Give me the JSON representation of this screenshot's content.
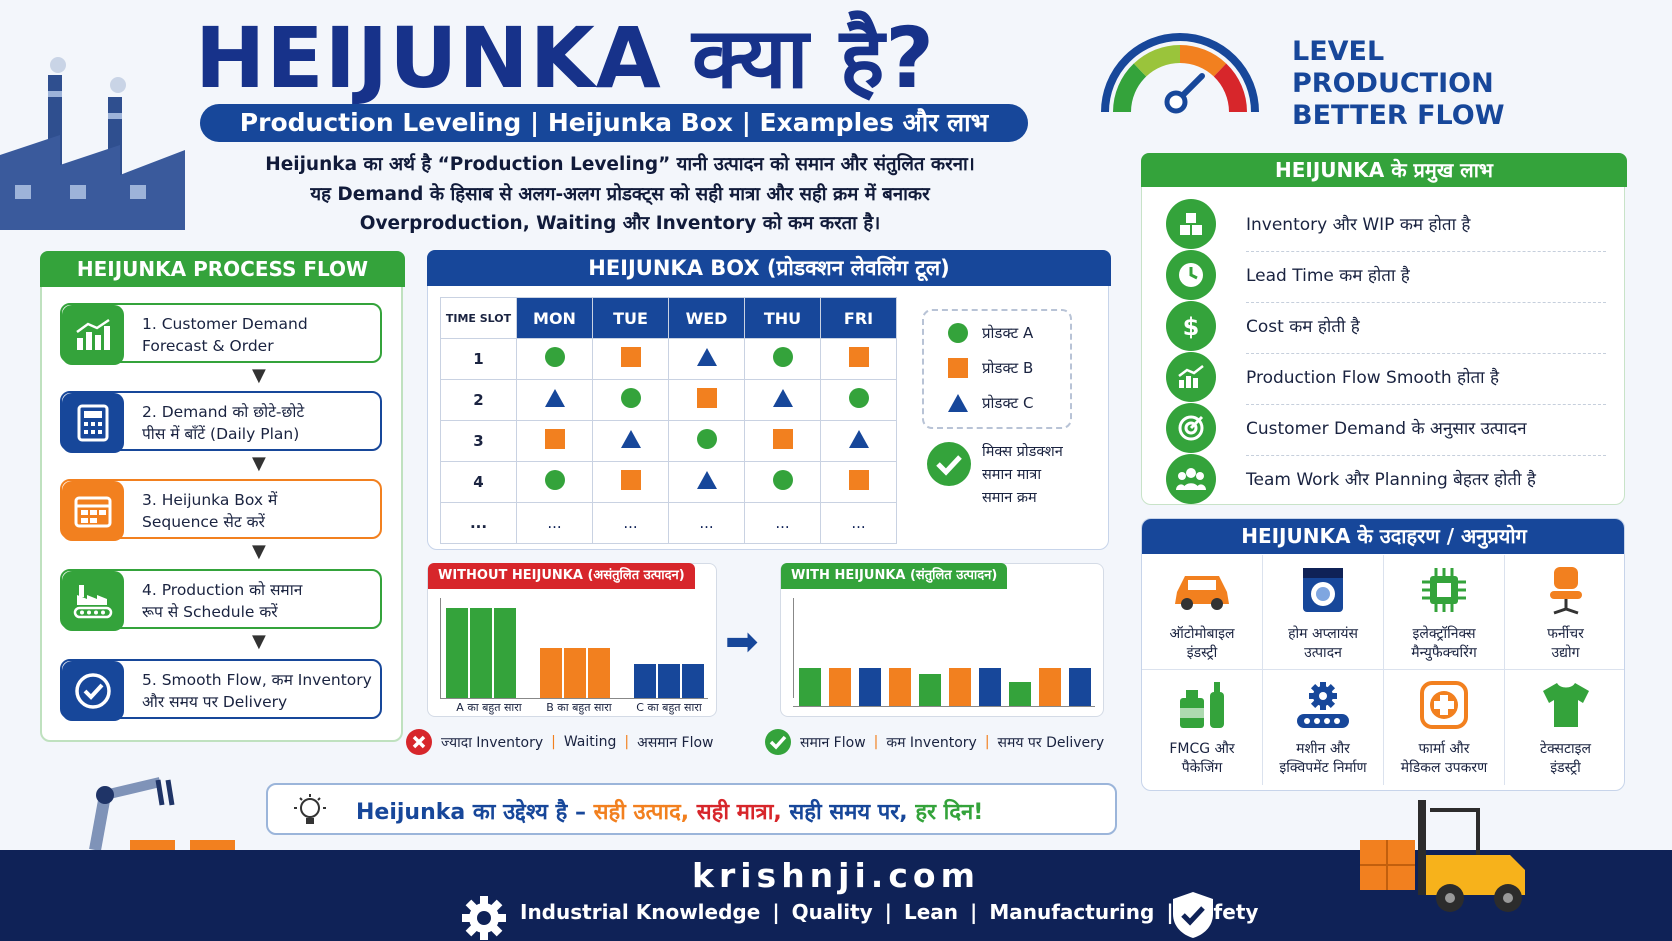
{
  "header": {
    "title": "HEIJUNKA क्या है?",
    "subtitle": "Production Leveling | Heijunka Box | Examples और लाभ",
    "intro": [
      "Heijunka का अर्थ है “Production Leveling” यानी उत्पादन को समान और संतुलित करना।",
      "यह Demand के हिसाब से अलग-अलग प्रोडक्ट्स को सही मात्रा और सही क्रम में बनाकर",
      "Overproduction, Waiting और Inventory को कम करता है।"
    ],
    "level": [
      "LEVEL",
      "PRODUCTION",
      "BETTER FLOW"
    ]
  },
  "process": {
    "title": "HEIJUNKA PROCESS FLOW",
    "steps": [
      {
        "text": "1. Customer Demand\nForecast & Order",
        "icon": "chart-growth-icon",
        "color": "#34a33b"
      },
      {
        "text": "2. Demand को छोटे-छोटे\nपीस में बाँटें (Daily Plan)",
        "icon": "calculator-icon",
        "color": "#17479a"
      },
      {
        "text": "3. Heijunka Box में\nSequence सेट करें",
        "icon": "schedule-board-icon",
        "color": "#f2801f"
      },
      {
        "text": "4. Production को समान\nरूप से Schedule करें",
        "icon": "factory-conveyor-icon",
        "color": "#34a33b"
      },
      {
        "text": "5. Smooth Flow, कम Inventory\nऔर समय पर Delivery",
        "icon": "check-circle-icon",
        "color": "#17479a"
      }
    ]
  },
  "heijunka_box": {
    "title": "HEIJUNKA BOX (प्रोडक्शन लेवलिंग टूल)",
    "slot_label": "TIME SLOT",
    "days": [
      "MON",
      "TUE",
      "WED",
      "THU",
      "FRI"
    ],
    "rows": [
      {
        "slot": "1",
        "cells": [
          "A",
          "B",
          "C",
          "A",
          "B"
        ]
      },
      {
        "slot": "2",
        "cells": [
          "C",
          "A",
          "B",
          "C",
          "A"
        ]
      },
      {
        "slot": "3",
        "cells": [
          "B",
          "C",
          "A",
          "B",
          "C"
        ]
      },
      {
        "slot": "4",
        "cells": [
          "A",
          "B",
          "C",
          "A",
          "B"
        ]
      },
      {
        "slot": "...",
        "cells": [
          "...",
          "...",
          "...",
          "...",
          "..."
        ]
      }
    ],
    "legend": [
      {
        "key": "A",
        "label": "प्रोडक्ट A",
        "shape": "circle",
        "color": "#34a33b"
      },
      {
        "key": "B",
        "label": "प्रोडक्ट B",
        "shape": "square",
        "color": "#f2801f"
      },
      {
        "key": "C",
        "label": "प्रोडक्ट C",
        "shape": "triangle",
        "color": "#17479a"
      }
    ],
    "mix_note": [
      "मिक्स प्रोडक्शन",
      "समान मात्रा",
      "समान क्रम"
    ]
  },
  "without": {
    "title": "WITHOUT HEIJUNKA (असंतुलित उत्पादन)",
    "labels": [
      "A का बहुत सारा",
      "B का बहुत सारा",
      "C का बहुत सारा"
    ],
    "footer": [
      "ज्यादा Inventory",
      "Waiting",
      "असमान Flow"
    ]
  },
  "with": {
    "title": "WITH HEIJUNKA (संतुलित उत्पादन)",
    "footer": [
      "समान Flow",
      "कम Inventory",
      "समय पर Delivery"
    ]
  },
  "benefits": {
    "title": "HEIJUNKA के प्रमुख लाभ",
    "items": [
      {
        "text": "Inventory और WIP कम होता है",
        "icon": "boxes-icon"
      },
      {
        "text": "Lead Time कम होता है",
        "icon": "clock-icon"
      },
      {
        "text": "Cost कम होती है",
        "icon": "dollar-icon"
      },
      {
        "text": "Production Flow Smooth होता है",
        "icon": "growth-chart-icon"
      },
      {
        "text": "Customer Demand के अनुसार उत्पादन",
        "icon": "target-icon"
      },
      {
        "text": "Team Work और Planning बेहतर होती है",
        "icon": "team-icon"
      }
    ]
  },
  "examples": {
    "title": "HEIJUNKA के उदाहरण / अनुप्रयोग",
    "items": [
      {
        "text": "ऑटोमोबाइल\nइंडस्ट्री",
        "icon": "car-icon"
      },
      {
        "text": "होम अप्लायंस\nउत्पादन",
        "icon": "washing-machine-icon"
      },
      {
        "text": "इलेक्ट्रॉनिक्स\nमैन्युफैक्चरिंग",
        "icon": "chip-icon"
      },
      {
        "text": "फर्नीचर\nउद्योग",
        "icon": "chair-icon"
      },
      {
        "text": "FMCG और\nपैकेजिंग",
        "icon": "bottles-icon"
      },
      {
        "text": "मशीन और\nइक्विपमेंट निर्माण",
        "icon": "gear-conveyor-icon"
      },
      {
        "text": "फार्मा और\nमेडिकल उपकरण",
        "icon": "medical-cross-icon"
      },
      {
        "text": "टेक्सटाइल\nइंडस्ट्री",
        "icon": "tshirt-icon"
      }
    ]
  },
  "goal": {
    "prefix": "Heijunka का उद्देश्य है –",
    "parts": [
      "सही उत्पाद,",
      "सही मात्रा,",
      "सही समय पर,",
      "हर दिन!"
    ]
  },
  "footer": {
    "site": "krishnji.com",
    "tags": [
      "Industrial Knowledge",
      "Quality",
      "Lean",
      "Manufacturing",
      "Safety"
    ]
  },
  "colors": {
    "green": "#34a33b",
    "orange": "#f2801f",
    "blue": "#17479a",
    "navy": "#0f2257",
    "red": "#d7262b"
  }
}
